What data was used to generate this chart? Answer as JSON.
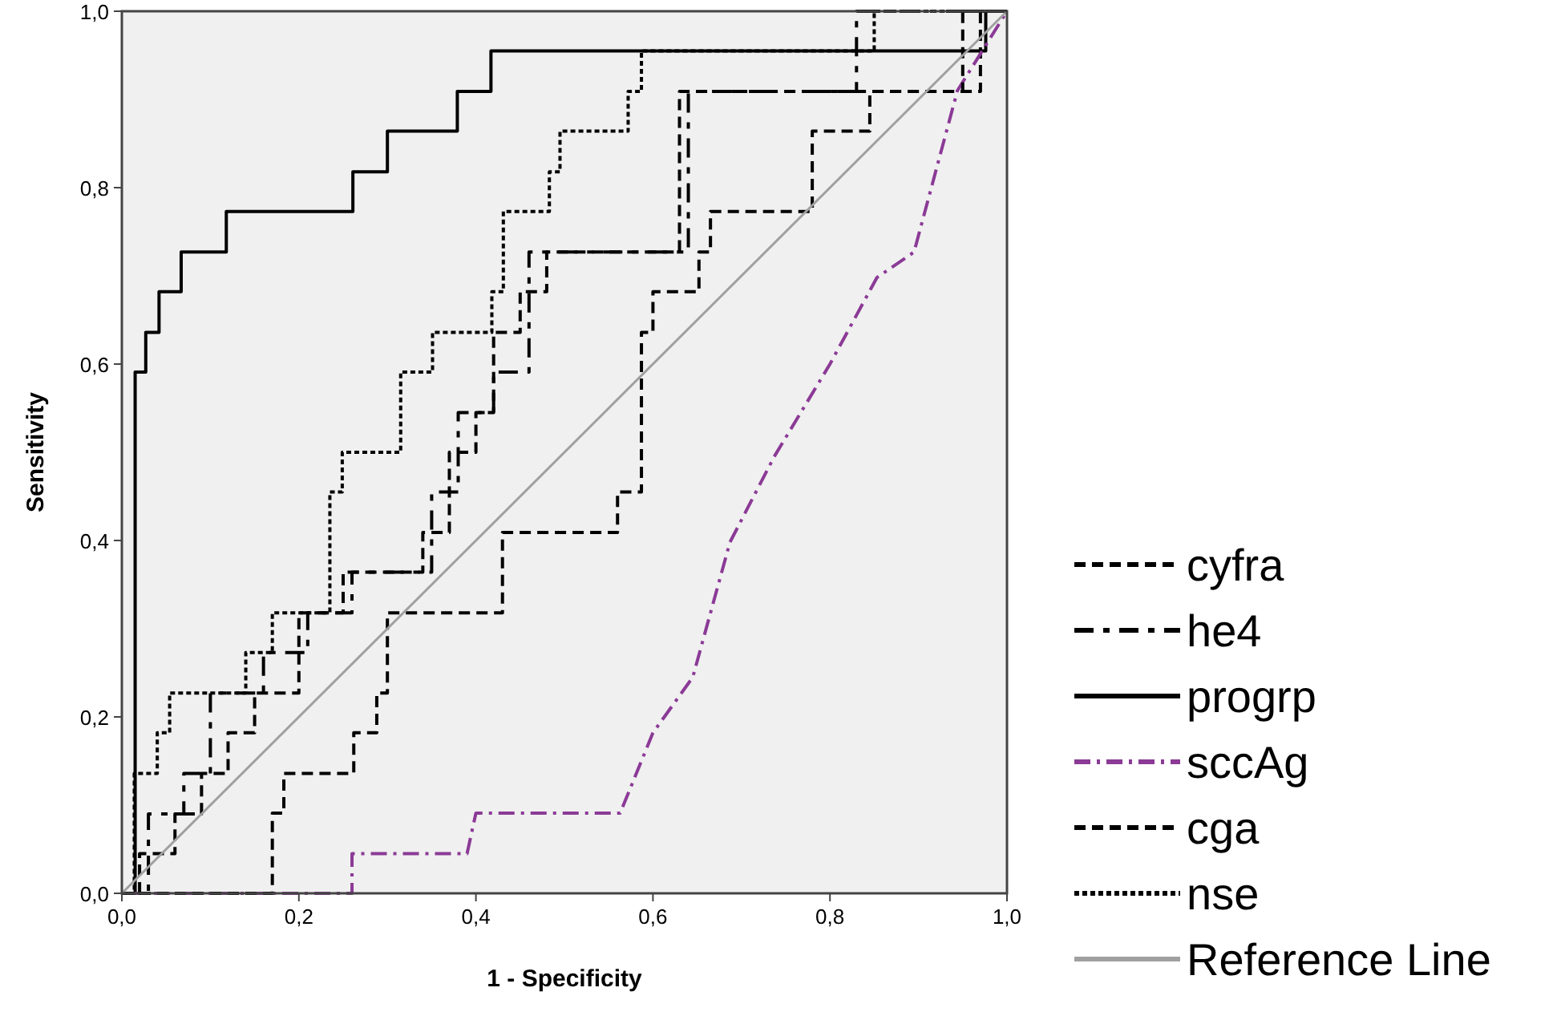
{
  "chart_data": {
    "type": "line",
    "xlabel": "1 - Specificity",
    "ylabel": "Sensitivity",
    "xlim": [
      0,
      1
    ],
    "ylim": [
      0,
      1
    ],
    "xticks": [
      {
        "value": 0,
        "label": "0,0"
      },
      {
        "value": 0.2,
        "label": "0,2"
      },
      {
        "value": 0.4,
        "label": "0,4"
      },
      {
        "value": 0.6,
        "label": "0,6"
      },
      {
        "value": 0.8,
        "label": "0,8"
      },
      {
        "value": 1,
        "label": "1,0"
      }
    ],
    "yticks": [
      {
        "value": 0,
        "label": "0,0"
      },
      {
        "value": 0.2,
        "label": "0,2"
      },
      {
        "value": 0.4,
        "label": "0,4"
      },
      {
        "value": 0.6,
        "label": "0,6"
      },
      {
        "value": 0.8,
        "label": "0,8"
      },
      {
        "value": 1,
        "label": "1,0"
      }
    ],
    "grid": false,
    "legend": "right",
    "marker": "none",
    "series": [
      {
        "name": "cyfra",
        "color": "#000000",
        "line_style": "dashed",
        "x": [
          0,
          0.02,
          0.02,
          0.06,
          0.06,
          0.09,
          0.09,
          0.12,
          0.12,
          0.15,
          0.15,
          0.2,
          0.2,
          0.25,
          0.25,
          0.34,
          0.34,
          0.37,
          0.37,
          0.4,
          0.4,
          0.42,
          0.42,
          0.45,
          0.45,
          0.48,
          0.48,
          0.63,
          0.63,
          0.97,
          0.97,
          1
        ],
        "values": [
          0,
          0,
          0.045,
          0.045,
          0.09,
          0.09,
          0.136,
          0.136,
          0.182,
          0.182,
          0.227,
          0.227,
          0.318,
          0.318,
          0.364,
          0.364,
          0.409,
          0.409,
          0.5,
          0.5,
          0.545,
          0.545,
          0.636,
          0.636,
          0.682,
          0.682,
          0.727,
          0.727,
          0.909,
          0.909,
          1,
          1
        ]
      },
      {
        "name": "he4",
        "color": "#000000",
        "line_style": "dashed",
        "x": [
          0,
          0.03,
          0.03,
          0.07,
          0.07,
          0.1,
          0.1,
          0.16,
          0.16,
          0.21,
          0.21,
          0.26,
          0.26,
          0.35,
          0.35,
          0.38,
          0.38,
          0.42,
          0.42,
          0.46,
          0.46,
          0.64,
          0.64,
          0.83,
          0.83,
          1
        ],
        "values": [
          0,
          0,
          0.09,
          0.09,
          0.136,
          0.136,
          0.227,
          0.227,
          0.273,
          0.273,
          0.318,
          0.318,
          0.364,
          0.364,
          0.455,
          0.455,
          0.545,
          0.545,
          0.591,
          0.591,
          0.727,
          0.727,
          0.909,
          0.909,
          1,
          1
        ]
      },
      {
        "name": "progrp",
        "color": "#000000",
        "line_style": "solid",
        "x": [
          0,
          0.015,
          0.015,
          0.027,
          0.027,
          0.042,
          0.042,
          0.067,
          0.067,
          0.118,
          0.118,
          0.261,
          0.261,
          0.3,
          0.3,
          0.379,
          0.379,
          0.417,
          0.417,
          0.976,
          0.976,
          1
        ],
        "values": [
          0,
          0,
          0.591,
          0.591,
          0.636,
          0.636,
          0.682,
          0.682,
          0.727,
          0.727,
          0.773,
          0.773,
          0.818,
          0.818,
          0.864,
          0.864,
          0.909,
          0.909,
          0.955,
          0.955,
          1,
          1
        ]
      },
      {
        "name": "sccAg",
        "color": "#8b3a96",
        "line_style": "dashed",
        "x": [
          0,
          0.26,
          0.26,
          0.39,
          0.4,
          0.563,
          0.6,
          0.645,
          0.687,
          0.737,
          0.8,
          0.853,
          0.895,
          0.944,
          1
        ],
        "values": [
          0,
          0,
          0.045,
          0.045,
          0.091,
          0.091,
          0.182,
          0.245,
          0.398,
          0.495,
          0.6,
          0.698,
          0.727,
          0.91,
          1
        ]
      },
      {
        "name": "cga",
        "color": "#000000",
        "line_style": "dashed",
        "x": [
          0,
          0.17,
          0.17,
          0.183,
          0.183,
          0.262,
          0.262,
          0.288,
          0.288,
          0.3,
          0.3,
          0.43,
          0.43,
          0.56,
          0.56,
          0.587,
          0.587,
          0.6,
          0.6,
          0.652,
          0.652,
          0.665,
          0.665,
          0.78,
          0.78,
          0.845,
          0.845,
          0.95,
          0.95,
          1
        ],
        "values": [
          0,
          0,
          0.091,
          0.091,
          0.136,
          0.136,
          0.182,
          0.182,
          0.227,
          0.227,
          0.318,
          0.318,
          0.409,
          0.409,
          0.455,
          0.455,
          0.636,
          0.636,
          0.682,
          0.682,
          0.727,
          0.727,
          0.773,
          0.773,
          0.864,
          0.864,
          0.909,
          0.909,
          1,
          1
        ]
      },
      {
        "name": "nse",
        "color": "#000000",
        "line_style": "dotted",
        "x": [
          0,
          0.014,
          0.014,
          0.04,
          0.04,
          0.054,
          0.054,
          0.14,
          0.14,
          0.17,
          0.17,
          0.235,
          0.235,
          0.249,
          0.249,
          0.315,
          0.315,
          0.351,
          0.351,
          0.418,
          0.418,
          0.431,
          0.431,
          0.483,
          0.483,
          0.495,
          0.495,
          0.572,
          0.572,
          0.587,
          0.587,
          0.85,
          0.85,
          1
        ],
        "values": [
          0,
          0,
          0.136,
          0.136,
          0.182,
          0.182,
          0.227,
          0.227,
          0.273,
          0.273,
          0.318,
          0.318,
          0.455,
          0.455,
          0.5,
          0.5,
          0.591,
          0.591,
          0.636,
          0.636,
          0.682,
          0.682,
          0.773,
          0.773,
          0.818,
          0.818,
          0.864,
          0.864,
          0.909,
          0.909,
          0.955,
          0.955,
          1,
          1
        ]
      },
      {
        "name": "Reference Line",
        "color": "#a0a0a0",
        "line_style": "solid",
        "x": [
          0,
          1
        ],
        "values": [
          0,
          1
        ]
      }
    ]
  }
}
